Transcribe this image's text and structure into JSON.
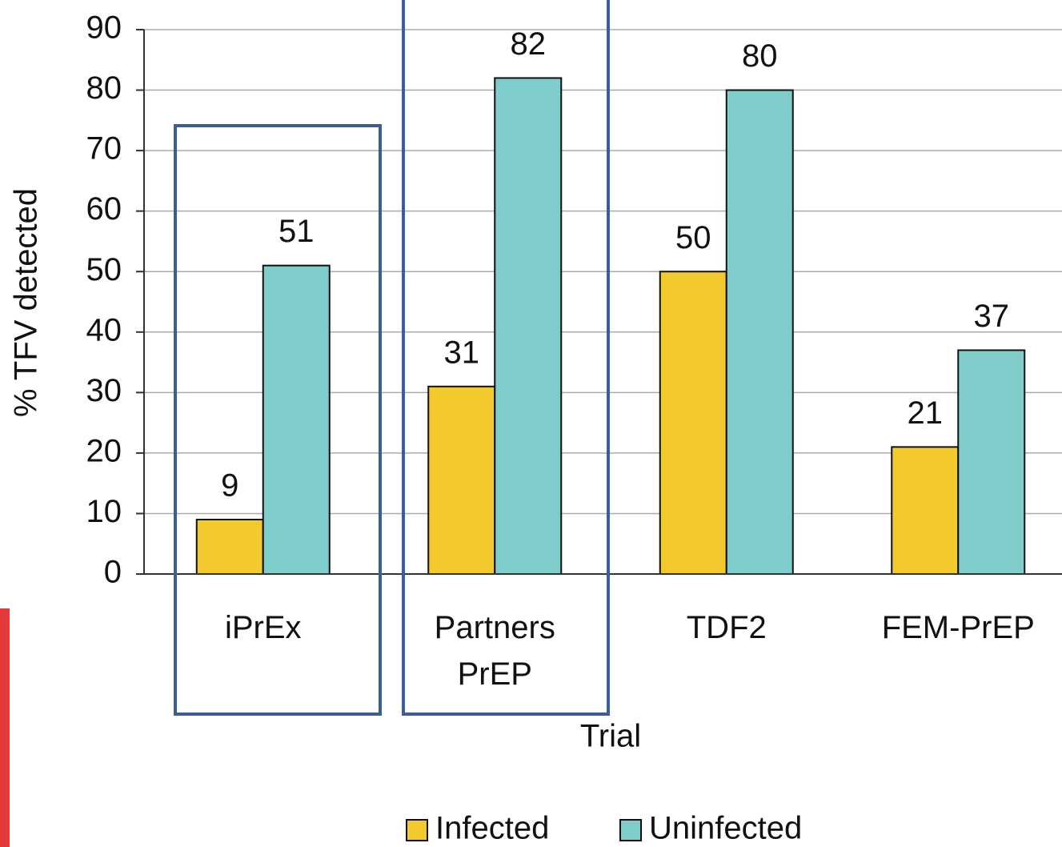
{
  "chart_data": {
    "type": "bar",
    "x_label": "Trial",
    "y_label": "% TFV  detected",
    "categories": [
      "iPrEx",
      "Partners PrEP",
      "TDF2",
      "FEM-PrEP"
    ],
    "series": [
      {
        "name": "Infected",
        "color": "#f2ca2e",
        "values": [
          9,
          31,
          50,
          21
        ]
      },
      {
        "name": "Uninfected",
        "color": "#7ecdcb",
        "values": [
          51,
          82,
          80,
          37
        ]
      }
    ],
    "ylim": [
      0,
      90
    ],
    "yticks": [
      0,
      10,
      20,
      30,
      40,
      50,
      60,
      70,
      80,
      90
    ],
    "grid": true
  }
}
